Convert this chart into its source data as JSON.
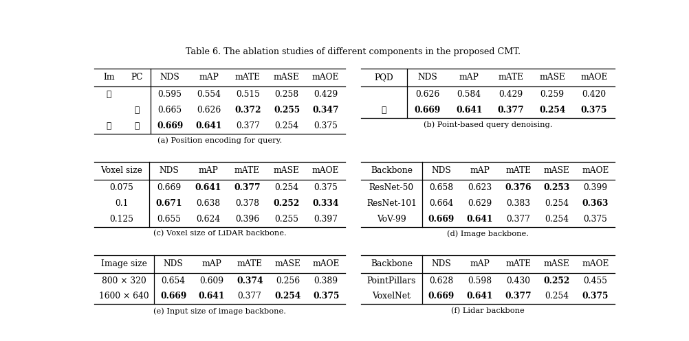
{
  "title": "Table 6. The ablation studies of different components in the proposed CMT.",
  "bg_color": "#ffffff",
  "sections": {
    "a": {
      "caption": "(a) Position encoding for query.",
      "headers": [
        "Im",
        "PC",
        "NDS",
        "mAP",
        "mATE",
        "mASE",
        "mAOE"
      ],
      "divider_after_col": 1,
      "rows": [
        {
          "cells": [
            "✓",
            "",
            "0.595",
            "0.554",
            "0.515",
            "0.258",
            "0.429"
          ],
          "bold": [
            false,
            false,
            false,
            false,
            false,
            false,
            false
          ]
        },
        {
          "cells": [
            "",
            "✓",
            "0.665",
            "0.626",
            "0.372",
            "0.255",
            "0.347"
          ],
          "bold": [
            false,
            false,
            false,
            false,
            true,
            true,
            true
          ]
        },
        {
          "cells": [
            "✓",
            "✓",
            "0.669",
            "0.641",
            "0.377",
            "0.254",
            "0.375"
          ],
          "bold": [
            false,
            false,
            true,
            true,
            false,
            false,
            false
          ]
        }
      ]
    },
    "b": {
      "caption": "(b) Point-based query denoising.",
      "headers": [
        "PQD",
        "NDS",
        "mAP",
        "mATE",
        "mASE",
        "mAOE"
      ],
      "divider_after_col": 0,
      "rows": [
        {
          "cells": [
            "",
            "0.626",
            "0.584",
            "0.429",
            "0.259",
            "0.420"
          ],
          "bold": [
            false,
            false,
            false,
            false,
            false,
            false
          ]
        },
        {
          "cells": [
            "✓",
            "0.669",
            "0.641",
            "0.377",
            "0.254",
            "0.375"
          ],
          "bold": [
            false,
            true,
            true,
            true,
            true,
            true
          ]
        }
      ]
    },
    "c": {
      "caption": "(c) Voxel size of LiDAR backbone.",
      "headers": [
        "Voxel size",
        "NDS",
        "mAP",
        "mATE",
        "mASE",
        "mAOE"
      ],
      "divider_after_col": 0,
      "rows": [
        {
          "cells": [
            "0.075",
            "0.669",
            "0.641",
            "0.377",
            "0.254",
            "0.375"
          ],
          "bold": [
            false,
            false,
            true,
            true,
            false,
            false
          ]
        },
        {
          "cells": [
            "0.1",
            "0.671",
            "0.638",
            "0.378",
            "0.252",
            "0.334"
          ],
          "bold": [
            false,
            true,
            false,
            false,
            true,
            true
          ]
        },
        {
          "cells": [
            "0.125",
            "0.655",
            "0.624",
            "0.396",
            "0.255",
            "0.397"
          ],
          "bold": [
            false,
            false,
            false,
            false,
            false,
            false
          ]
        }
      ]
    },
    "d": {
      "caption": "(d) Image backbone.",
      "headers": [
        "Backbone",
        "NDS",
        "mAP",
        "mATE",
        "mASE",
        "mAOE"
      ],
      "divider_after_col": 0,
      "rows": [
        {
          "cells": [
            "ResNet-50",
            "0.658",
            "0.623",
            "0.376",
            "0.253",
            "0.399"
          ],
          "bold": [
            false,
            false,
            false,
            true,
            true,
            false
          ]
        },
        {
          "cells": [
            "ResNet-101",
            "0.664",
            "0.629",
            "0.383",
            "0.254",
            "0.363"
          ],
          "bold": [
            false,
            false,
            false,
            false,
            false,
            true
          ]
        },
        {
          "cells": [
            "VoV-99",
            "0.669",
            "0.641",
            "0.377",
            "0.254",
            "0.375"
          ],
          "bold": [
            false,
            true,
            true,
            false,
            false,
            false
          ]
        }
      ]
    },
    "e": {
      "caption": "(e) Input size of image backbone.",
      "headers": [
        "Image size",
        "NDS",
        "mAP",
        "mATE",
        "mASE",
        "mAOE"
      ],
      "divider_after_col": 0,
      "rows": [
        {
          "cells": [
            "800 × 320",
            "0.654",
            "0.609",
            "0.374",
            "0.256",
            "0.389"
          ],
          "bold": [
            false,
            false,
            false,
            true,
            false,
            false
          ]
        },
        {
          "cells": [
            "1600 × 640",
            "0.669",
            "0.641",
            "0.377",
            "0.254",
            "0.375"
          ],
          "bold": [
            false,
            true,
            true,
            false,
            true,
            true
          ]
        }
      ]
    },
    "f": {
      "caption": "(f) Lidar backbone",
      "headers": [
        "Backbone",
        "NDS",
        "mAP",
        "mATE",
        "mASE",
        "mAOE"
      ],
      "divider_after_col": 0,
      "rows": [
        {
          "cells": [
            "PointPillars",
            "0.628",
            "0.598",
            "0.430",
            "0.252",
            "0.455"
          ],
          "bold": [
            false,
            false,
            false,
            false,
            true,
            false
          ]
        },
        {
          "cells": [
            "VoxelNet",
            "0.669",
            "0.641",
            "0.377",
            "0.254",
            "0.375"
          ],
          "bold": [
            false,
            true,
            true,
            true,
            false,
            true
          ]
        }
      ]
    }
  }
}
